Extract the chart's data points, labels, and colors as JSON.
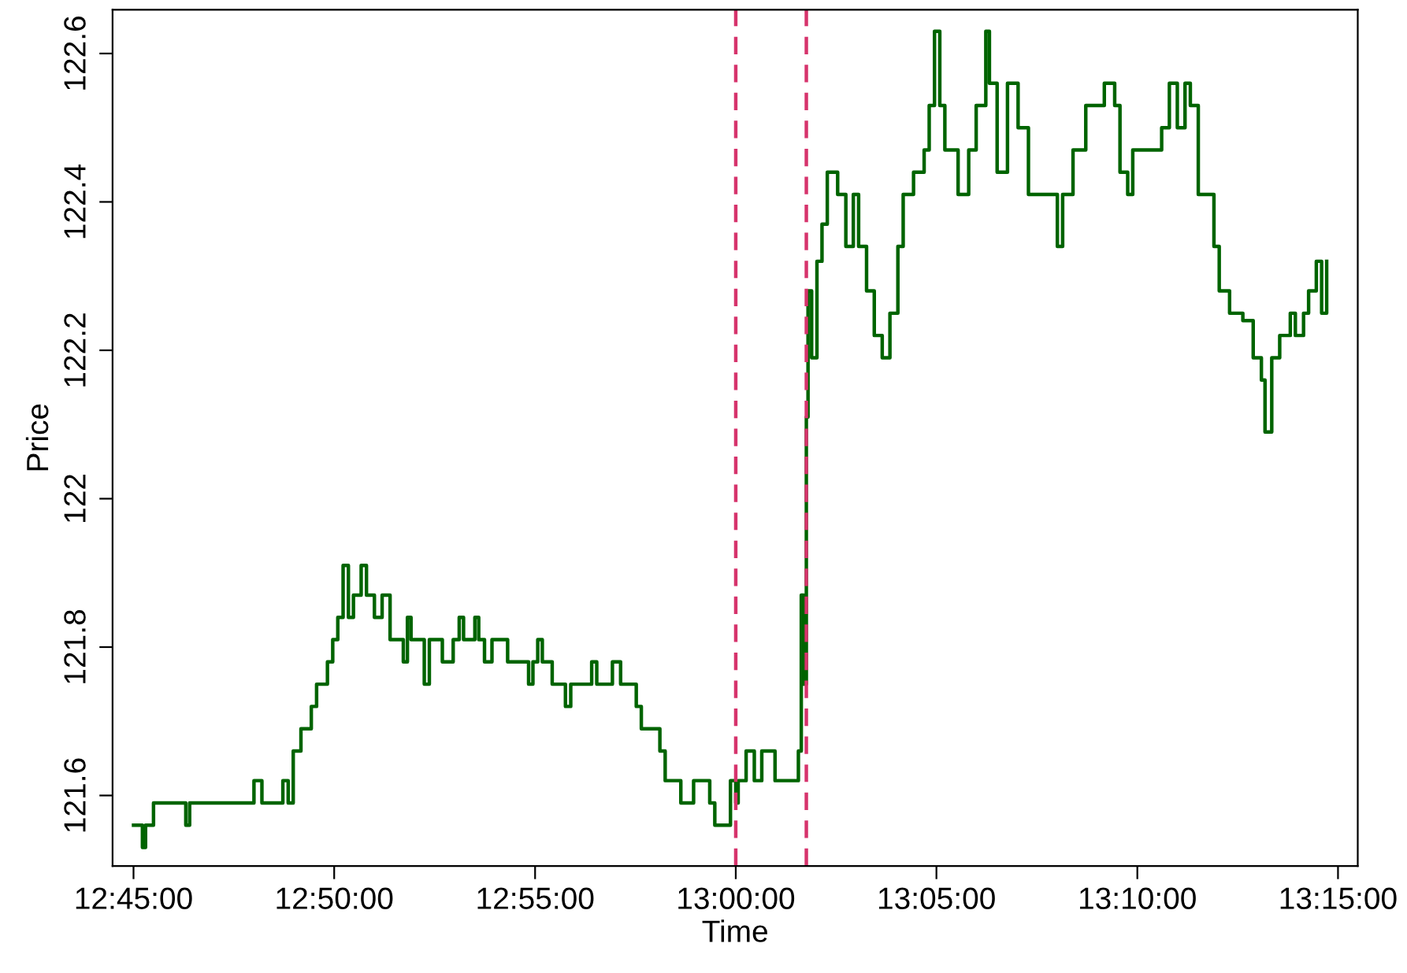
{
  "chart_data": {
    "type": "step",
    "xlabel": "Time",
    "ylabel": "Price",
    "grid": false,
    "line_style": "solid",
    "xlim": [
      12.7413,
      13.2582
    ],
    "ylim": [
      121.505,
      122.659
    ],
    "xticks": [
      {
        "value": 12.75,
        "label": "12:45:00"
      },
      {
        "value": 12.8333,
        "label": "12:50:00"
      },
      {
        "value": 12.9167,
        "label": "12:55:00"
      },
      {
        "value": 13.0,
        "label": "13:00:00"
      },
      {
        "value": 13.0833,
        "label": "13:05:00"
      },
      {
        "value": 13.1667,
        "label": "13:10:00"
      },
      {
        "value": 13.25,
        "label": "13:15:00"
      }
    ],
    "yticks": [
      121.6,
      121.8,
      122,
      122.2,
      122.4,
      122.6
    ],
    "ref_lines": [
      {
        "axis": "x",
        "value": 13.0,
        "color": "#d6336c",
        "line_style": "dashed"
      },
      {
        "axis": "x",
        "value": 13.0293,
        "color": "#d6336c",
        "line_style": "dashed"
      }
    ],
    "series": [
      {
        "color": "#006400",
        "x": [
          12.75,
          12.7537,
          12.755,
          12.7583,
          12.7717,
          12.7733,
          12.8,
          12.8033,
          12.812,
          12.8142,
          12.8163,
          12.8195,
          12.8238,
          12.826,
          12.8305,
          12.8327,
          12.8348,
          12.837,
          12.8392,
          12.8413,
          12.8445,
          12.8467,
          12.85,
          12.8532,
          12.8565,
          12.862,
          12.8637,
          12.8652,
          12.8707,
          12.8728,
          12.8782,
          12.8827,
          12.8852,
          12.887,
          12.8917,
          12.8933,
          12.8957,
          12.8988,
          12.9053,
          12.914,
          12.9158,
          12.9178,
          12.9197,
          12.9238,
          12.9293,
          12.9315,
          12.9402,
          12.9423,
          12.9488,
          12.9522,
          12.9587,
          12.9608,
          12.9685,
          12.9707,
          12.9772,
          12.9825,
          12.9892,
          12.9913,
          12.9978,
          13.0,
          13.001,
          13.0043,
          13.0077,
          13.0108,
          13.0163,
          13.0238,
          13.026,
          13.0272,
          13.0282,
          13.0293,
          13.03,
          13.0315,
          13.0337,
          13.0358,
          13.038,
          13.0423,
          13.0457,
          13.0488,
          13.051,
          13.0543,
          13.0575,
          13.0608,
          13.064,
          13.0673,
          13.0695,
          13.0738,
          13.0782,
          13.0803,
          13.0825,
          13.0847,
          13.0868,
          13.0923,
          13.0967,
          13.0998,
          13.1038,
          13.1053,
          13.1085,
          13.1128,
          13.1172,
          13.1215,
          13.1302,
          13.1335,
          13.1357,
          13.14,
          13.1453,
          13.153,
          13.1573,
          13.1595,
          13.1627,
          13.1648,
          13.1747,
          13.1768,
          13.18,
          13.1833,
          13.1865,
          13.1887,
          13.192,
          13.1985,
          13.2007,
          13.205,
          13.2105,
          13.2148,
          13.2182,
          13.2197,
          13.2225,
          13.2258,
          13.2302,
          13.2323,
          13.2357,
          13.2378,
          13.241,
          13.2432,
          13.2453
        ],
        "values": [
          121.56,
          121.53,
          121.56,
          121.59,
          121.56,
          121.59,
          121.62,
          121.59,
          121.62,
          121.59,
          121.66,
          121.69,
          121.72,
          121.75,
          121.78,
          121.81,
          121.84,
          121.91,
          121.84,
          121.87,
          121.91,
          121.87,
          121.84,
          121.87,
          121.81,
          121.78,
          121.84,
          121.81,
          121.75,
          121.81,
          121.78,
          121.81,
          121.84,
          121.81,
          121.84,
          121.81,
          121.78,
          121.81,
          121.78,
          121.75,
          121.78,
          121.81,
          121.78,
          121.75,
          121.72,
          121.75,
          121.78,
          121.75,
          121.78,
          121.75,
          121.72,
          121.69,
          121.66,
          121.62,
          121.59,
          121.62,
          121.59,
          121.56,
          121.62,
          121.59,
          121.62,
          121.66,
          121.62,
          121.66,
          121.62,
          121.62,
          121.66,
          121.87,
          121.75,
          122.11,
          122.28,
          122.19,
          122.32,
          122.37,
          122.44,
          122.41,
          122.34,
          122.41,
          122.34,
          122.28,
          122.22,
          122.19,
          122.25,
          122.34,
          122.41,
          122.44,
          122.47,
          122.53,
          122.63,
          122.53,
          122.47,
          122.41,
          122.47,
          122.53,
          122.63,
          122.56,
          122.44,
          122.56,
          122.5,
          122.41,
          122.41,
          122.34,
          122.41,
          122.47,
          122.53,
          122.56,
          122.53,
          122.44,
          122.41,
          122.47,
          122.47,
          122.5,
          122.56,
          122.5,
          122.56,
          122.53,
          122.41,
          122.34,
          122.28,
          122.25,
          122.24,
          122.19,
          122.16,
          122.09,
          122.19,
          122.22,
          122.25,
          122.22,
          122.25,
          122.28,
          122.32,
          122.25,
          122.32
        ]
      }
    ]
  }
}
